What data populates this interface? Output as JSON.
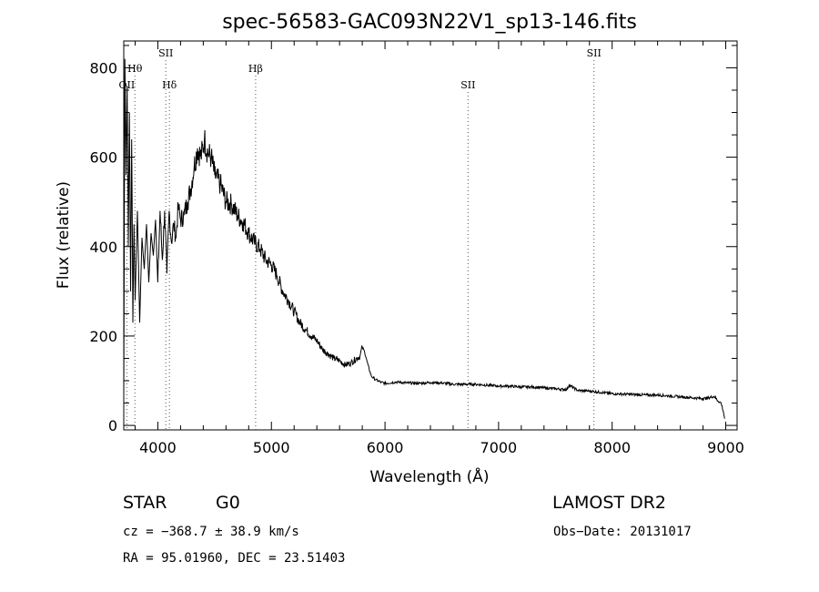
{
  "chart_data": {
    "type": "line",
    "title": "spec-56583-GAC093N22V1_sp13-146.fits",
    "xlabel": "Wavelength (Å)",
    "ylabel": "Flux (relative)",
    "xlim": [
      3700,
      9100
    ],
    "ylim": [
      -10,
      860
    ],
    "xticks": [
      4000,
      5000,
      6000,
      7000,
      8000,
      9000
    ],
    "yticks": [
      0,
      200,
      400,
      600,
      800
    ],
    "x_tick_labels": [
      "4000",
      "5000",
      "6000",
      "7000",
      "8000",
      "9000"
    ],
    "y_tick_labels": [
      "0",
      "200",
      "400",
      "600",
      "800"
    ],
    "grid": false,
    "series": [
      {
        "x": [
          3700,
          3710,
          3720,
          3730,
          3740,
          3750,
          3760,
          3770,
          3780,
          3790,
          3800,
          3820,
          3840,
          3860,
          3880,
          3900,
          3920,
          3940,
          3960,
          3980,
          4000,
          4020,
          4040,
          4060,
          4080,
          4100,
          4120,
          4140,
          4160,
          4180,
          4200,
          4230,
          4260,
          4290,
          4320,
          4350,
          4380,
          4410,
          4440,
          4470,
          4500,
          4550,
          4600,
          4650,
          4700,
          4750,
          4800,
          4850,
          4900,
          4950,
          5000,
          5050,
          5100,
          5150,
          5200,
          5250,
          5300,
          5350,
          5400,
          5450,
          5500,
          5550,
          5600,
          5650,
          5700,
          5750,
          5780,
          5800,
          5820,
          5850,
          5880,
          5920,
          5960,
          6000,
          6100,
          6200,
          6300,
          6400,
          6500,
          6600,
          6700,
          6800,
          6900,
          7000,
          7100,
          7200,
          7300,
          7400,
          7500,
          7600,
          7620,
          7700,
          7800,
          7900,
          8000,
          8100,
          8200,
          8300,
          8400,
          8500,
          8600,
          8700,
          8800,
          8850,
          8900,
          8930,
          8960,
          8980,
          8990
        ],
        "y": [
          60,
          820,
          560,
          760,
          400,
          700,
          300,
          640,
          230,
          450,
          280,
          480,
          230,
          420,
          350,
          450,
          320,
          430,
          380,
          460,
          320,
          480,
          370,
          480,
          340,
          480,
          410,
          450,
          420,
          490,
          460,
          470,
          500,
          530,
          580,
          620,
          600,
          640,
          610,
          600,
          560,
          540,
          500,
          495,
          470,
          455,
          430,
          410,
          395,
          370,
          360,
          335,
          300,
          280,
          255,
          230,
          215,
          200,
          190,
          170,
          160,
          150,
          145,
          135,
          140,
          150,
          155,
          175,
          165,
          135,
          110,
          102,
          97,
          94,
          97,
          95,
          94,
          96,
          95,
          92,
          92,
          92,
          90,
          88,
          88,
          86,
          86,
          84,
          82,
          80,
          90,
          78,
          77,
          74,
          71,
          70,
          69,
          68,
          68,
          66,
          64,
          62,
          60,
          62,
          65,
          55,
          50,
          30,
          15
        ]
      }
    ],
    "line_markers": [
      {
        "label": "OII",
        "x": 3727,
        "row": 3
      },
      {
        "label": "Hθ",
        "x": 3798,
        "row": 2
      },
      {
        "label": "SII",
        "x": 4070,
        "row": 1
      },
      {
        "label": "Hδ",
        "x": 4102,
        "row": 3
      },
      {
        "label": "Hβ",
        "x": 4861,
        "row": 2
      },
      {
        "label": "SII",
        "x": 6731,
        "row": 3
      },
      {
        "label": "SII",
        "x": 7840,
        "row": 1
      }
    ]
  },
  "info": {
    "object_class": "STAR",
    "subclass": "G0",
    "survey": "LAMOST DR2",
    "cz": "cz = −368.7 ± 38.9 km/s",
    "obs_date": "Obs−Date: 20131017",
    "radec": "RA =  95.01960, DEC =  23.51403"
  }
}
